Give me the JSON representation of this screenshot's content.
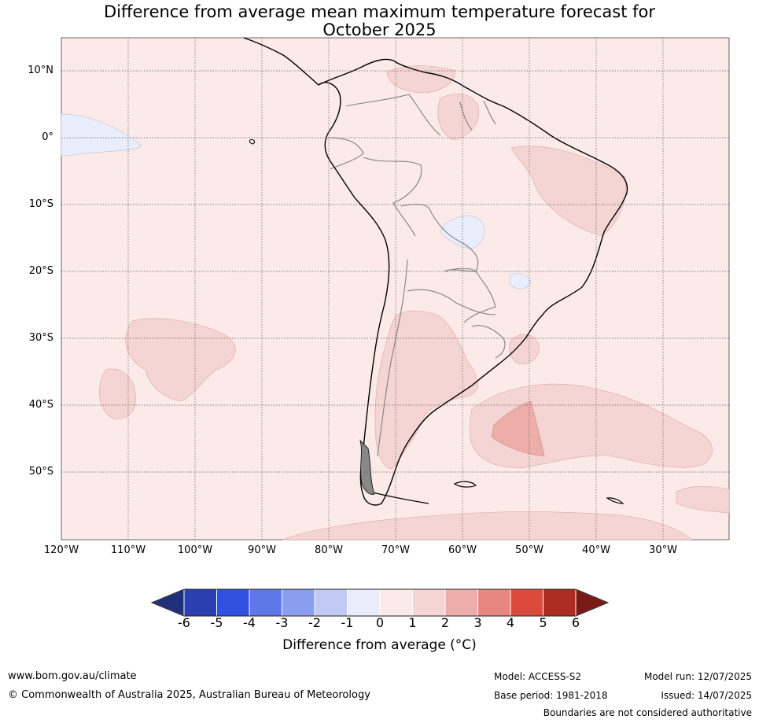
{
  "title_line1": "Difference from average mean maximum temperature forecast for",
  "title_line2": "October 2025",
  "map": {
    "lat_labels": [
      "10°N",
      "0°",
      "10°S",
      "20°S",
      "30°S",
      "40°S",
      "50°S"
    ],
    "lon_labels": [
      "120°W",
      "110°W",
      "100°W",
      "90°W",
      "80°W",
      "70°W",
      "60°W",
      "50°W",
      "40°W",
      "30°W"
    ],
    "colors": {
      "background_band": "#fbeae8",
      "band_1_2": "#f5d5d3",
      "band_2_3": "#edaeaa",
      "band_neg1_0": "#e8eefb",
      "coast": "#000000",
      "borders": "#808080"
    }
  },
  "colorbar": {
    "ticks": [
      "-6",
      "-5",
      "-4",
      "-3",
      "-2",
      "-1",
      "0",
      "1",
      "2",
      "3",
      "4",
      "5",
      "6"
    ],
    "colors": [
      "#1f2f7a",
      "#2a3fb0",
      "#3050e0",
      "#5e78e8",
      "#8a9ef0",
      "#c1c9f5",
      "#e8ecfb",
      "#fbeae8",
      "#f5d5d3",
      "#edaeaa",
      "#e88680",
      "#dc4a3c",
      "#ad2c22",
      "#7a1a16"
    ],
    "label": "Difference from average (°C)"
  },
  "footer": {
    "url": "www.bom.gov.au/climate",
    "copyright": "© Commonwealth of Australia 2025, Australian Bureau of Meteorology",
    "model": "Model: ACCESS-S2",
    "base_period": "Base period: 1981-2018",
    "model_run": "Model run: 12/07/2025",
    "issued": "Issued: 14/07/2025",
    "disclaimer": "Boundaries are not considered authoritative"
  }
}
